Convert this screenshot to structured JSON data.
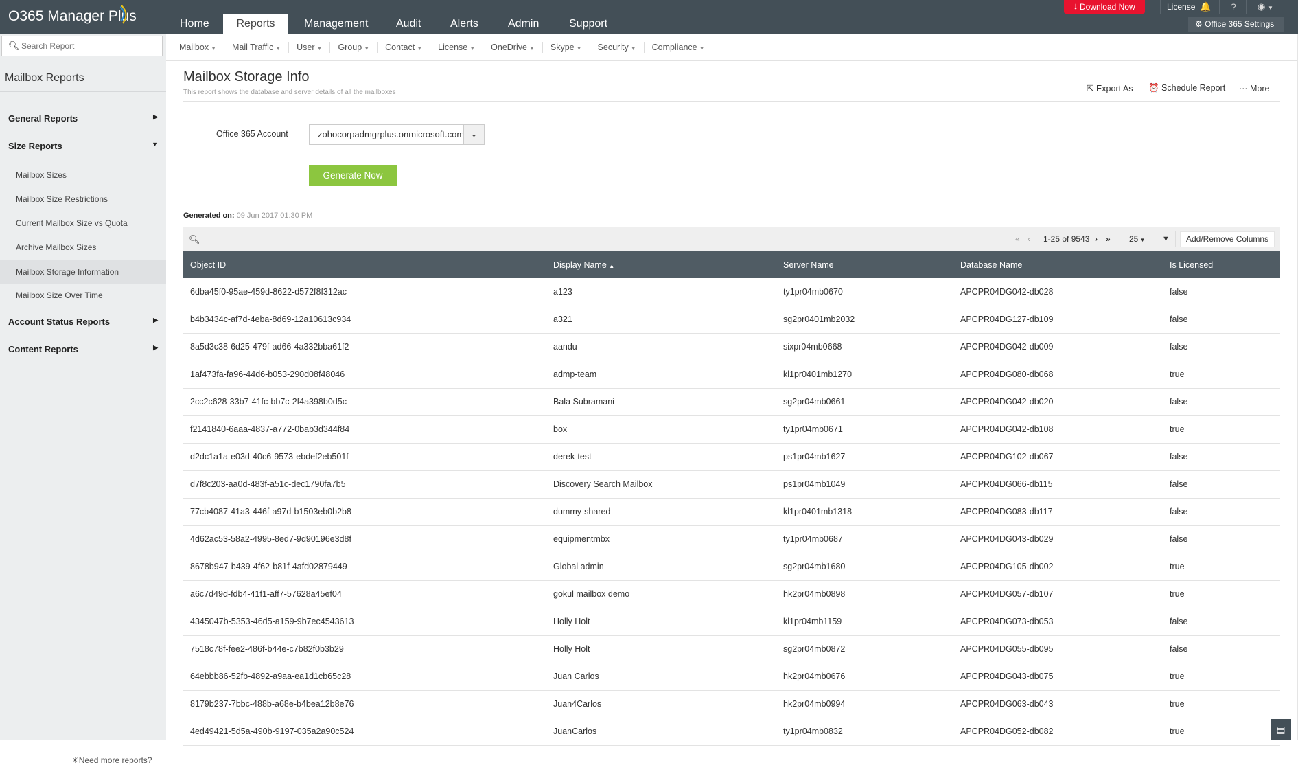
{
  "app": {
    "name": "O365 Manager Plus"
  },
  "header": {
    "tabs": [
      "Home",
      "Reports",
      "Management",
      "Audit",
      "Alerts",
      "Admin",
      "Support"
    ],
    "active_tab": "Reports",
    "download_label": "Download Now",
    "license_label": "License",
    "help_label": "?",
    "settings_label": "Office 365 Settings"
  },
  "colors": {
    "header_bg": "#434f57",
    "download": "#e8132f",
    "generate": "#8cc63f",
    "table_header": "#505c64"
  },
  "sidebar": {
    "search_placeholder": "Search Report",
    "title": "Mailbox Reports",
    "groups": [
      {
        "label": "General Reports",
        "expanded": false
      },
      {
        "label": "Size Reports",
        "expanded": true
      },
      {
        "label": "Account Status Reports",
        "expanded": false
      },
      {
        "label": "Content Reports",
        "expanded": false
      }
    ],
    "size_items": [
      "Mailbox Sizes",
      "Mailbox Size Restrictions",
      "Current Mailbox Size vs Quota",
      "Archive Mailbox Sizes",
      "Mailbox Storage Information",
      "Mailbox Size Over Time"
    ],
    "selected_item": "Mailbox Storage Information",
    "need_more": "Need more reports?"
  },
  "subnav": [
    "Mailbox",
    "Mail Traffic",
    "User",
    "Group",
    "Contact",
    "License",
    "OneDrive",
    "Skype",
    "Security",
    "Compliance"
  ],
  "page": {
    "title": "Mailbox Storage Info",
    "subtitle": "This report shows the database and server details of all the mailboxes",
    "actions": [
      "Export As",
      "Schedule Report",
      "More"
    ],
    "account_label": "Office 365 Account",
    "account_value": "zohocorpadmgrplus.onmicrosoft.com",
    "generate_label": "Generate Now",
    "generated_on_label": "Generated on:",
    "generated_on_value": "09 Jun 2017 01:30 PM"
  },
  "toolbar": {
    "range": "1-25 of 9543",
    "page_size": "25",
    "add_remove": "Add/Remove Columns"
  },
  "table": {
    "columns": [
      "Object ID",
      "Display Name",
      "Server Name",
      "Database Name",
      "Is Licensed"
    ],
    "sorted_column": "Display Name",
    "sort_dir": "asc",
    "rows": [
      [
        "6dba45f0-95ae-459d-8622-d572f8f312ac",
        "a123",
        "ty1pr04mb0670",
        "APCPR04DG042-db028",
        "false"
      ],
      [
        "b4b3434c-af7d-4eba-8d69-12a10613c934",
        "a321",
        "sg2pr0401mb2032",
        "APCPR04DG127-db109",
        "false"
      ],
      [
        "8a5d3c38-6d25-479f-ad66-4a332bba61f2",
        "aandu",
        "sixpr04mb0668",
        "APCPR04DG042-db009",
        "false"
      ],
      [
        "1af473fa-fa96-44d6-b053-290d08f48046",
        "admp-team",
        "kl1pr0401mb1270",
        "APCPR04DG080-db068",
        "true"
      ],
      [
        "2cc2c628-33b7-41fc-bb7c-2f4a398b0d5c",
        "Bala Subramani",
        "sg2pr04mb0661",
        "APCPR04DG042-db020",
        "false"
      ],
      [
        "f2141840-6aaa-4837-a772-0bab3d344f84",
        "box",
        "ty1pr04mb0671",
        "APCPR04DG042-db108",
        "true"
      ],
      [
        "d2dc1a1a-e03d-40c6-9573-ebdef2eb501f",
        "derek-test",
        "ps1pr04mb1627",
        "APCPR04DG102-db067",
        "false"
      ],
      [
        "d7f8c203-aa0d-483f-a51c-dec1790fa7b5",
        "Discovery Search Mailbox",
        "ps1pr04mb1049",
        "APCPR04DG066-db115",
        "false"
      ],
      [
        "77cb4087-41a3-446f-a97d-b1503eb0b2b8",
        "dummy-shared",
        "kl1pr0401mb1318",
        "APCPR04DG083-db117",
        "false"
      ],
      [
        "4d62ac53-58a2-4995-8ed7-9d90196e3d8f",
        "equipmentmbx",
        "ty1pr04mb0687",
        "APCPR04DG043-db029",
        "false"
      ],
      [
        "8678b947-b439-4f62-b81f-4afd02879449",
        "Global admin",
        "sg2pr04mb1680",
        "APCPR04DG105-db002",
        "true"
      ],
      [
        "a6c7d49d-fdb4-41f1-aff7-57628a45ef04",
        "gokul mailbox demo",
        "hk2pr04mb0898",
        "APCPR04DG057-db107",
        "true"
      ],
      [
        "4345047b-5353-46d5-a159-9b7ec4543613",
        "Holly Holt",
        "kl1pr04mb1159",
        "APCPR04DG073-db053",
        "false"
      ],
      [
        "7518c78f-fee2-486f-b44e-c7b82f0b3b29",
        "Holly Holt",
        "sg2pr04mb0872",
        "APCPR04DG055-db095",
        "false"
      ],
      [
        "64ebbb86-52fb-4892-a9aa-ea1d1cb65c28",
        "Juan Carlos",
        "hk2pr04mb0676",
        "APCPR04DG043-db075",
        "true"
      ],
      [
        "8179b237-7bbc-488b-a68e-b4bea12b8e76",
        "Juan4Carlos",
        "hk2pr04mb0994",
        "APCPR04DG063-db043",
        "true"
      ],
      [
        "4ed49421-5d5a-490b-9197-035a2a90c524",
        "JuanCarlos",
        "ty1pr04mb0832",
        "APCPR04DG052-db082",
        "true"
      ]
    ]
  }
}
